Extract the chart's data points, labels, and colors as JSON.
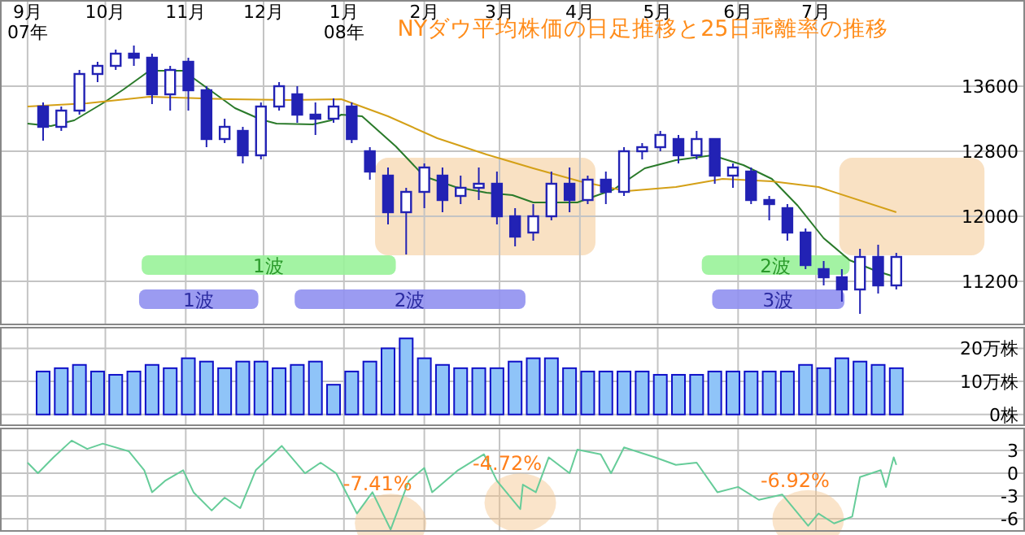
{
  "chart_data": [
    {
      "type": "candlestick",
      "title": "NYダウ平均株価の日足推移と25日乖離率の推移",
      "color": "#2222b4",
      "grid": true,
      "xlim": [
        "2007-08-22",
        "2008-09-19"
      ],
      "ylim": [
        10660,
        14660
      ],
      "xticks": [
        {
          "value": "2007-09-01",
          "label": "9月\n07年"
        },
        {
          "value": "2007-10-01",
          "label": "10月"
        },
        {
          "value": "2007-11-01",
          "label": "11月"
        },
        {
          "value": "2007-12-01",
          "label": "12月"
        },
        {
          "value": "2008-01-01",
          "label": "1月\n08年"
        },
        {
          "value": "2008-02-01",
          "label": "2月"
        },
        {
          "value": "2008-03-01",
          "label": "3月"
        },
        {
          "value": "2008-04-01",
          "label": "4月"
        },
        {
          "value": "2008-05-01",
          "label": "5月"
        },
        {
          "value": "2008-06-01",
          "label": "6月"
        },
        {
          "value": "2008-07-01",
          "label": "7月"
        }
      ],
      "yticks": [
        11200,
        12000,
        12800,
        13600
      ],
      "x": [
        "2007-09-07",
        "2007-09-14",
        "2007-09-21",
        "2007-09-28",
        "2007-10-05",
        "2007-10-12",
        "2007-10-19",
        "2007-10-26",
        "2007-11-02",
        "2007-11-09",
        "2007-11-16",
        "2007-11-23",
        "2007-11-30",
        "2007-12-07",
        "2007-12-14",
        "2007-12-21",
        "2007-12-28",
        "2008-01-04",
        "2008-01-11",
        "2008-01-18",
        "2008-01-25",
        "2008-02-01",
        "2008-02-08",
        "2008-02-15",
        "2008-02-22",
        "2008-02-29",
        "2008-03-07",
        "2008-03-14",
        "2008-03-21",
        "2008-03-28",
        "2008-04-04",
        "2008-04-11",
        "2008-04-18",
        "2008-04-25",
        "2008-05-02",
        "2008-05-09",
        "2008-05-16",
        "2008-05-23",
        "2008-05-30",
        "2008-06-06",
        "2008-06-13",
        "2008-06-20",
        "2008-06-27",
        "2008-07-04",
        "2008-07-11",
        "2008-07-18",
        "2008-07-25",
        "2008-08-01"
      ],
      "ohlc": [
        [
          13350,
          13400,
          12930,
          13100
        ],
        [
          13100,
          13350,
          13050,
          13300
        ],
        [
          13300,
          13800,
          13250,
          13750
        ],
        [
          13750,
          13900,
          13650,
          13850
        ],
        [
          13850,
          14050,
          13800,
          14000
        ],
        [
          14000,
          14100,
          13850,
          13950
        ],
        [
          13950,
          14000,
          13380,
          13500
        ],
        [
          13500,
          13850,
          13300,
          13800
        ],
        [
          13900,
          13950,
          13300,
          13550
        ],
        [
          13550,
          13600,
          12850,
          12950
        ],
        [
          12950,
          13200,
          12900,
          13100
        ],
        [
          13050,
          13100,
          12650,
          12750
        ],
        [
          12750,
          13400,
          12700,
          13350
        ],
        [
          13350,
          13650,
          13300,
          13600
        ],
        [
          13500,
          13600,
          13150,
          13250
        ],
        [
          13250,
          13400,
          13000,
          13200
        ],
        [
          13200,
          13450,
          13150,
          13350
        ],
        [
          13350,
          13400,
          12900,
          12950
        ],
        [
          12800,
          12850,
          12450,
          12550
        ],
        [
          12500,
          12600,
          11900,
          12050
        ],
        [
          12050,
          12350,
          11530,
          12300
        ],
        [
          12300,
          12650,
          12100,
          12600
        ],
        [
          12500,
          12600,
          12050,
          12200
        ],
        [
          12250,
          12500,
          12150,
          12350
        ],
        [
          12350,
          12600,
          12200,
          12400
        ],
        [
          12400,
          12550,
          11900,
          12000
        ],
        [
          12000,
          12100,
          11630,
          11750
        ],
        [
          11800,
          12150,
          11700,
          12000
        ],
        [
          12000,
          12550,
          11950,
          12400
        ],
        [
          12400,
          12600,
          12050,
          12200
        ],
        [
          12200,
          12500,
          12150,
          12450
        ],
        [
          12450,
          12550,
          12150,
          12300
        ],
        [
          12300,
          12850,
          12250,
          12800
        ],
        [
          12800,
          12900,
          12700,
          12850
        ],
        [
          12850,
          13050,
          12800,
          13000
        ],
        [
          12950,
          13000,
          12650,
          12750
        ],
        [
          12750,
          13050,
          12700,
          12950
        ],
        [
          12950,
          12950,
          12400,
          12500
        ],
        [
          12500,
          12650,
          12350,
          12600
        ],
        [
          12550,
          12600,
          12150,
          12200
        ],
        [
          12200,
          12250,
          11950,
          12150
        ],
        [
          12100,
          12150,
          11700,
          11800
        ],
        [
          11800,
          11850,
          11350,
          11400
        ],
        [
          11350,
          11450,
          11150,
          11250
        ],
        [
          11250,
          11350,
          10950,
          11100
        ],
        [
          11100,
          11600,
          10800,
          11500
        ],
        [
          11500,
          11650,
          11050,
          11150
        ],
        [
          11150,
          11550,
          11100,
          11500
        ]
      ],
      "series": [
        {
          "type": "line",
          "color": "#2a7a2a",
          "x": [
            "2007-09-01",
            "2007-09-10",
            "2007-09-19",
            "2007-09-30",
            "2007-10-08",
            "2007-10-18",
            "2007-10-31",
            "2007-11-10",
            "2007-11-20",
            "2007-11-30",
            "2007-12-06",
            "2007-12-20",
            "2007-12-27",
            "2007-12-31",
            "2008-01-08",
            "2008-01-21",
            "2008-02-01",
            "2008-02-13",
            "2008-02-25",
            "2008-03-06",
            "2008-03-14",
            "2008-03-31",
            "2008-04-14",
            "2008-04-26",
            "2008-05-08",
            "2008-05-22",
            "2008-06-03",
            "2008-06-14",
            "2008-06-24",
            "2008-07-04",
            "2008-07-14",
            "2008-07-24",
            "2008-08-01"
          ],
          "values": [
            13140,
            13110,
            13180,
            13390,
            13560,
            13790,
            13790,
            13560,
            13330,
            13190,
            13140,
            13130,
            13180,
            13250,
            13230,
            12860,
            12490,
            12360,
            12290,
            12260,
            12170,
            12170,
            12330,
            12590,
            12690,
            12750,
            12630,
            12460,
            12130,
            11730,
            11460,
            11330,
            11250
          ]
        },
        {
          "type": "line",
          "color": "#d4a017",
          "x": [
            "2007-09-01",
            "2007-09-24",
            "2007-10-18",
            "2007-11-18",
            "2007-12-11",
            "2007-12-31",
            "2008-01-18",
            "2008-02-06",
            "2008-02-25",
            "2008-03-14",
            "2008-04-01",
            "2008-04-19",
            "2008-05-08",
            "2008-05-26",
            "2008-06-14",
            "2008-07-02",
            "2008-08-01"
          ],
          "values": [
            13350,
            13390,
            13470,
            13440,
            13430,
            13440,
            13230,
            12960,
            12760,
            12590,
            12430,
            12310,
            12360,
            12460,
            12430,
            12360,
            12050
          ]
        }
      ],
      "bands": [
        {
          "axis": "x",
          "from": "2008-01-13",
          "to": "2008-04-07",
          "label": null,
          "color": "#f8dcb8"
        },
        {
          "axis": "x",
          "from": "2008-07-10",
          "to": "2008-09-04",
          "label": null,
          "color": "#f8dcb8"
        },
        {
          "axis": "x",
          "from": "2007-10-15",
          "to": "2008-01-21",
          "label": "1波",
          "color": "#99f299"
        },
        {
          "axis": "x",
          "from": "2008-05-18",
          "to": "2008-07-14",
          "label": "2波",
          "color": "#99f299"
        },
        {
          "axis": "x",
          "from": "2007-10-14",
          "to": "2007-11-29",
          "label": "1波",
          "color": "#9090f0"
        },
        {
          "axis": "x",
          "from": "2007-12-13",
          "to": "2008-03-11",
          "label": "2波",
          "color": "#9090f0"
        },
        {
          "axis": "x",
          "from": "2008-05-22",
          "to": "2008-07-12",
          "label": "3波",
          "color": "#9090f0"
        }
      ]
    },
    {
      "type": "bar",
      "tick_labels": "y",
      "grid": true,
      "color": "#8fc4f8",
      "xlim": [
        "2007-08-22",
        "2008-09-19"
      ],
      "ylim": [
        -3.5,
        26.5
      ],
      "xticks": [
        {
          "value": "2007-09-01",
          "label": null
        },
        {
          "value": "2007-10-01",
          "label": null
        },
        {
          "value": "2007-11-01",
          "label": null
        },
        {
          "value": "2007-12-01",
          "label": null
        },
        {
          "value": "2008-01-01",
          "label": null
        },
        {
          "value": "2008-02-01",
          "label": null
        },
        {
          "value": "2008-03-01",
          "label": null
        },
        {
          "value": "2008-04-01",
          "label": null
        },
        {
          "value": "2008-05-01",
          "label": null
        },
        {
          "value": "2008-06-01",
          "label": null
        },
        {
          "value": "2008-07-01",
          "label": null
        }
      ],
      "yticks": [
        {
          "value": 0,
          "label": "0株"
        },
        {
          "value": 10,
          "label": "10万株"
        },
        {
          "value": 20,
          "label": "20万株"
        }
      ],
      "x": [
        "2007-09-07",
        "2007-09-14",
        "2007-09-21",
        "2007-09-28",
        "2007-10-05",
        "2007-10-12",
        "2007-10-19",
        "2007-10-26",
        "2007-11-02",
        "2007-11-09",
        "2007-11-16",
        "2007-11-23",
        "2007-11-30",
        "2007-12-07",
        "2007-12-14",
        "2007-12-21",
        "2007-12-28",
        "2008-01-04",
        "2008-01-11",
        "2008-01-18",
        "2008-01-25",
        "2008-02-01",
        "2008-02-08",
        "2008-02-15",
        "2008-02-22",
        "2008-02-29",
        "2008-03-07",
        "2008-03-14",
        "2008-03-21",
        "2008-03-28",
        "2008-04-04",
        "2008-04-11",
        "2008-04-18",
        "2008-04-25",
        "2008-05-02",
        "2008-05-09",
        "2008-05-16",
        "2008-05-23",
        "2008-05-30",
        "2008-06-06",
        "2008-06-13",
        "2008-06-20",
        "2008-06-27",
        "2008-07-04",
        "2008-07-11",
        "2008-07-18",
        "2008-07-25",
        "2008-08-01"
      ],
      "values": [
        13,
        14,
        15,
        13,
        12,
        13,
        15,
        14,
        17,
        16,
        14,
        16,
        16,
        14,
        15,
        16,
        9,
        13,
        16,
        20,
        23,
        17,
        15,
        14,
        14,
        14,
        16,
        17,
        17,
        14,
        13,
        13,
        13,
        13,
        12,
        12,
        12,
        13,
        13,
        13,
        13,
        13,
        15,
        14,
        17,
        16,
        15,
        14
      ]
    },
    {
      "type": "line",
      "tick_labels": "y",
      "grid": true,
      "color": "#66cc99",
      "xlim": [
        "2007-08-22",
        "2008-09-19"
      ],
      "ylim": [
        -7.7,
        6.0
      ],
      "xticks": [
        {
          "value": "2007-09-01",
          "label": null
        },
        {
          "value": "2007-10-01",
          "label": null
        },
        {
          "value": "2007-11-01",
          "label": null
        },
        {
          "value": "2007-12-01",
          "label": null
        },
        {
          "value": "2008-01-01",
          "label": null
        },
        {
          "value": "2008-02-01",
          "label": null
        },
        {
          "value": "2008-03-01",
          "label": null
        },
        {
          "value": "2008-04-01",
          "label": null
        },
        {
          "value": "2008-05-01",
          "label": null
        },
        {
          "value": "2008-06-01",
          "label": null
        },
        {
          "value": "2008-07-01",
          "label": null
        }
      ],
      "yticks": [
        3,
        0,
        {
          "value": -3,
          "label": "-3"
        },
        {
          "value": -6,
          "label": "-6"
        }
      ],
      "x": [
        "2007-09-01",
        "2007-09-05",
        "2007-09-11",
        "2007-09-18",
        "2007-09-24",
        "2007-09-30",
        "2007-10-10",
        "2007-10-16",
        "2007-10-19",
        "2007-10-24",
        "2007-10-31",
        "2007-11-04",
        "2007-11-11",
        "2007-11-16",
        "2007-11-22",
        "2007-11-28",
        "2007-12-08",
        "2007-12-17",
        "2007-12-23",
        "2007-12-29",
        "2008-01-06",
        "2008-01-12",
        "2008-01-19",
        "2008-01-26",
        "2008-02-01",
        "2008-02-04",
        "2008-02-14",
        "2008-02-24",
        "2008-02-29",
        "2008-03-09",
        "2008-03-10",
        "2008-03-15",
        "2008-03-20",
        "2008-03-28",
        "2008-03-31",
        "2008-04-09",
        "2008-04-13",
        "2008-04-18",
        "2008-04-30",
        "2008-05-08",
        "2008-05-16",
        "2008-05-24",
        "2008-06-01",
        "2008-06-09",
        "2008-06-18",
        "2008-06-28",
        "2008-07-02",
        "2008-07-08",
        "2008-07-15",
        "2008-07-18",
        "2008-07-26",
        "2008-07-28",
        "2008-07-31",
        "2008-08-01"
      ],
      "values": [
        1.4,
        0.0,
        2.1,
        4.3,
        3.2,
        3.9,
        2.9,
        0.4,
        -2.5,
        -1.0,
        0.4,
        -2.5,
        -4.9,
        -3.2,
        -4.6,
        0.4,
        3.6,
        0.0,
        1.4,
        0.0,
        -5.3,
        -2.5,
        -7.41,
        -1.0,
        0.7,
        -2.5,
        0.4,
        2.5,
        -1.0,
        -4.72,
        -1.5,
        -2.5,
        2.1,
        0.0,
        3.1,
        2.5,
        0.0,
        3.4,
        2.1,
        1.1,
        1.4,
        -2.5,
        -1.8,
        -3.5,
        -2.8,
        -6.92,
        -5.3,
        -6.6,
        -5.7,
        -0.5,
        0.4,
        -1.8,
        2.1,
        1.1
      ],
      "annotations": [
        {
          "text": "-7.41%",
          "x": "2008-01-19",
          "y": -7.41
        },
        {
          "text": "-4.72%",
          "x": "2008-03-09",
          "y": -4.72
        },
        {
          "text": "-6.92%",
          "x": "2008-06-28",
          "y": -6.92
        }
      ]
    }
  ]
}
